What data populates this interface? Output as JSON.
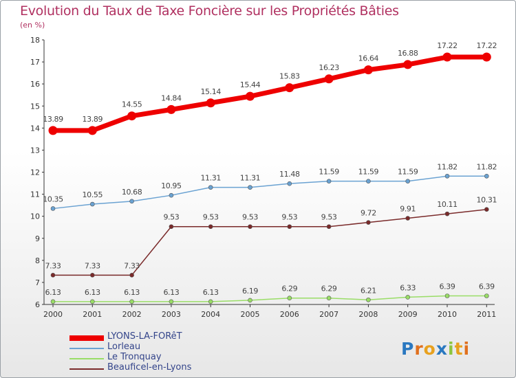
{
  "title": "Evolution du Taux de Taxe Foncière sur les Propriétés Bâties",
  "subtitle": "(en %)",
  "logo": [
    "P",
    "r",
    "o",
    "x",
    "i",
    "t",
    "i"
  ],
  "chart_data": {
    "type": "line",
    "title": "Evolution du Taux de Taxe Foncière sur les Propriétés Bâties",
    "ylabel": "(en %)",
    "xlabel": "",
    "x": [
      "2000",
      "2001",
      "2002",
      "2003",
      "2004",
      "2005",
      "2006",
      "2007",
      "2008",
      "2009",
      "2010",
      "2011"
    ],
    "ylim": [
      6,
      18
    ],
    "yticks": [
      "6",
      "7",
      "8",
      "9",
      "10",
      "11",
      "12",
      "13",
      "14",
      "15",
      "16",
      "17",
      "18"
    ],
    "grid": false,
    "legend_position": "bottom-left",
    "series": [
      {
        "name": "LYONS-LA-FORêT",
        "color": "#ee0000",
        "values": [
          13.89,
          13.89,
          14.55,
          14.84,
          15.14,
          15.44,
          15.83,
          16.23,
          16.64,
          16.88,
          17.22,
          17.22
        ],
        "labels": [
          "13.89",
          "13.89",
          "14.55",
          "14.84",
          "15.14",
          "15.44",
          "15.83",
          "16.23",
          "16.64",
          "16.88",
          "17.22",
          "17.22"
        ]
      },
      {
        "name": "Lorleau",
        "color": "#6aa2d2",
        "values": [
          10.35,
          10.55,
          10.68,
          10.95,
          11.31,
          11.31,
          11.48,
          11.59,
          11.59,
          11.59,
          11.82,
          11.82
        ],
        "labels": [
          "10.35",
          "10.55",
          "10.68",
          "10.95",
          "11.31",
          "11.31",
          "11.48",
          "11.59",
          "11.59",
          "11.59",
          "11.82",
          "11.82"
        ]
      },
      {
        "name": "Le Tronquay",
        "color": "#99dd66",
        "values": [
          6.13,
          6.13,
          6.13,
          6.13,
          6.13,
          6.19,
          6.29,
          6.29,
          6.21,
          6.33,
          6.39,
          6.39
        ],
        "labels": [
          "6.13",
          "6.13",
          "6.13",
          "6.13",
          "6.13",
          "6.19",
          "6.29",
          "6.29",
          "6.21",
          "6.33",
          "6.39",
          "6.39"
        ]
      },
      {
        "name": "Beauficel-en-Lyons",
        "color": "#7a2a2a",
        "values": [
          7.33,
          7.33,
          7.33,
          9.53,
          9.53,
          9.53,
          9.53,
          9.53,
          9.72,
          9.91,
          10.11,
          10.31
        ],
        "labels": [
          "7.33",
          "7.33",
          "7.33",
          "9.53",
          "9.53",
          "9.53",
          "9.53",
          "9.53",
          "9.72",
          "9.91",
          "10.11",
          "10.31"
        ]
      }
    ]
  }
}
